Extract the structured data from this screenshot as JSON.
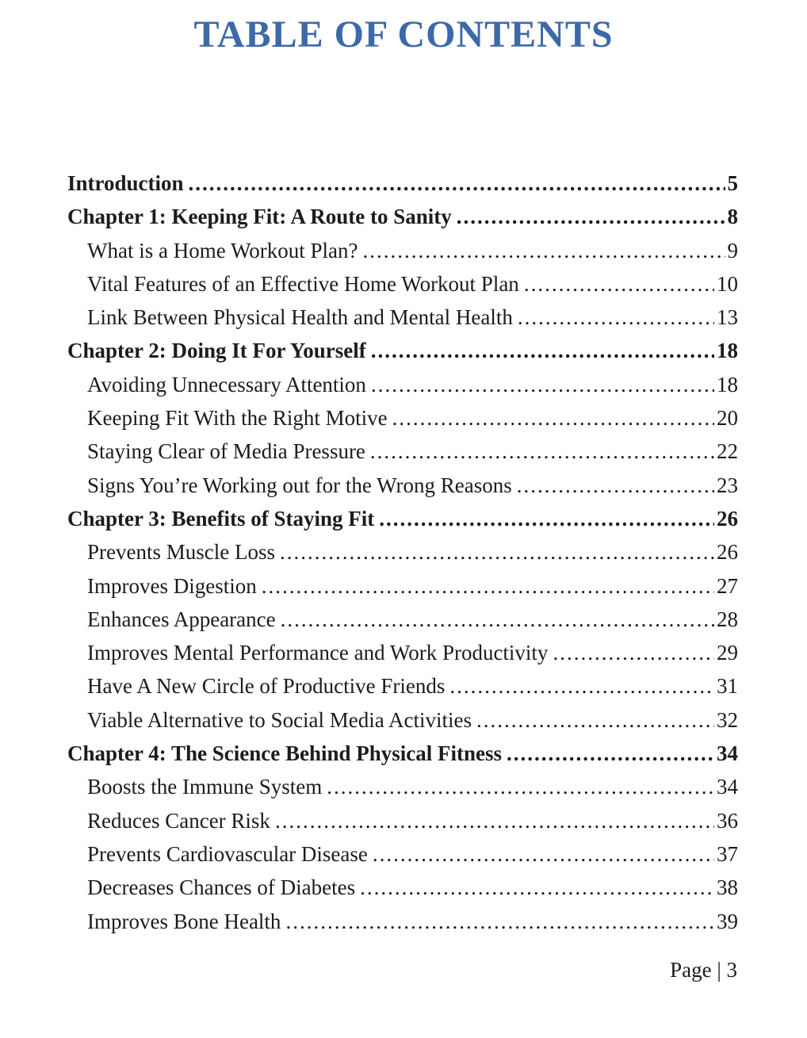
{
  "header": {
    "title": "TABLE OF CONTENTS"
  },
  "toc": {
    "entries": [
      {
        "title": "Introduction",
        "page": "5",
        "level": "chapter"
      },
      {
        "title": "Chapter 1: Keeping Fit: A Route to Sanity",
        "page": "8",
        "level": "chapter"
      },
      {
        "title": "What is a Home Workout Plan?",
        "page": "9",
        "level": "section"
      },
      {
        "title": "Vital Features of an Effective Home Workout Plan",
        "page": "10",
        "level": "section"
      },
      {
        "title": "Link Between Physical Health and Mental Health",
        "page": "13",
        "level": "section"
      },
      {
        "title": "Chapter 2: Doing It For Yourself",
        "page": "18",
        "level": "chapter"
      },
      {
        "title": "Avoiding Unnecessary Attention",
        "page": "18",
        "level": "section"
      },
      {
        "title": "Keeping Fit With the Right Motive",
        "page": "20",
        "level": "section"
      },
      {
        "title": "Staying Clear of Media Pressure",
        "page": "22",
        "level": "section"
      },
      {
        "title": "Signs You’re Working out for the Wrong Reasons",
        "page": "23",
        "level": "section"
      },
      {
        "title": "Chapter 3: Benefits of Staying Fit",
        "page": "26",
        "level": "chapter"
      },
      {
        "title": "Prevents Muscle Loss",
        "page": "26",
        "level": "section"
      },
      {
        "title": "Improves Digestion",
        "page": "27",
        "level": "section"
      },
      {
        "title": "Enhances Appearance",
        "page": "28",
        "level": "section"
      },
      {
        "title": "Improves Mental Performance and Work Productivity",
        "page": "29",
        "level": "section"
      },
      {
        "title": "Have A New Circle of Productive Friends",
        "page": "31",
        "level": "section"
      },
      {
        "title": "Viable Alternative to Social Media Activities",
        "page": "32",
        "level": "section"
      },
      {
        "title": "Chapter 4: The Science Behind Physical Fitness",
        "page": "34",
        "level": "chapter"
      },
      {
        "title": "Boosts the Immune System",
        "page": "34",
        "level": "section"
      },
      {
        "title": "Reduces Cancer Risk",
        "page": "36",
        "level": "section"
      },
      {
        "title": "Prevents Cardiovascular Disease",
        "page": "37",
        "level": "section"
      },
      {
        "title": "Decreases Chances of Diabetes",
        "page": "38",
        "level": "section"
      },
      {
        "title": "Improves Bone Health",
        "page": "39",
        "level": "section"
      }
    ]
  },
  "footer": {
    "label": "Page | 3"
  },
  "colors": {
    "title_blue": "#3d69a8",
    "text": "#1c1c1e",
    "background": "#ffffff"
  }
}
